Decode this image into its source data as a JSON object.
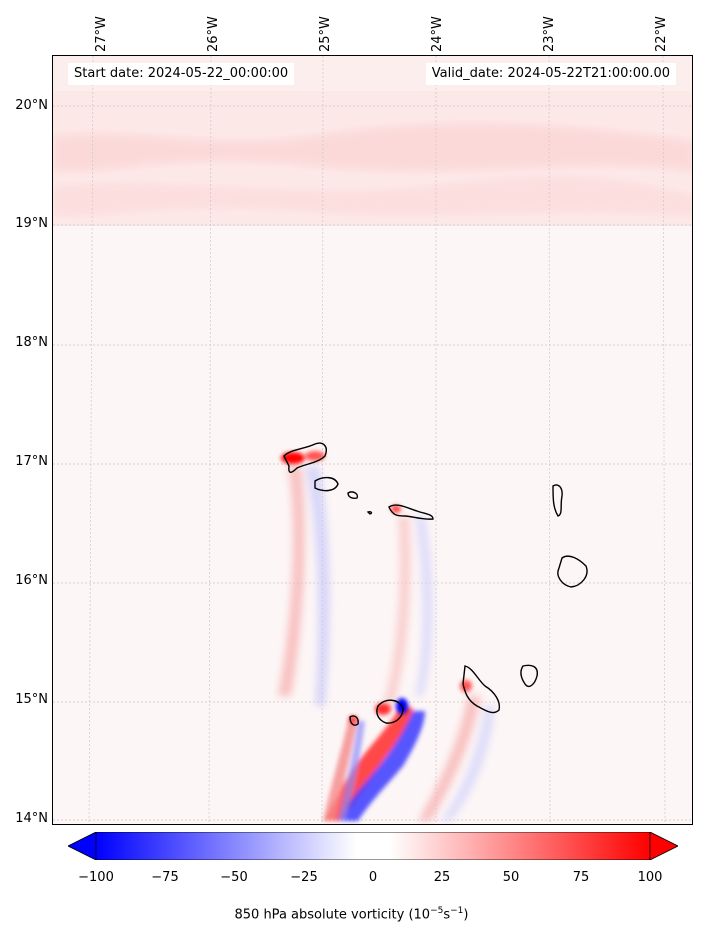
{
  "map": {
    "start_date": "Start date: 2024-05-22_00:00:00",
    "valid_date": "Valid_date: 2024-05-22T21:00:00.00",
    "lon_labels": [
      "27°W",
      "26°W",
      "25°W",
      "24°W",
      "23°W",
      "22°W"
    ],
    "lat_labels": [
      "20°N",
      "19°N",
      "18°N",
      "17°N",
      "16°N",
      "15°N",
      "14°N"
    ],
    "colorbar": {
      "ticks": [
        "−100",
        "−75",
        "−50",
        "−25",
        "0",
        "25",
        "50",
        "75",
        "100"
      ],
      "label_prefix": "850 hPa absolute vorticity (10",
      "label_exp1": "−5",
      "label_mid": "s",
      "label_exp2": "−1",
      "label_suffix": ")",
      "min_color": "#0000ff",
      "mid_color": "#ffffff",
      "max_color": "#ff0000"
    }
  }
}
